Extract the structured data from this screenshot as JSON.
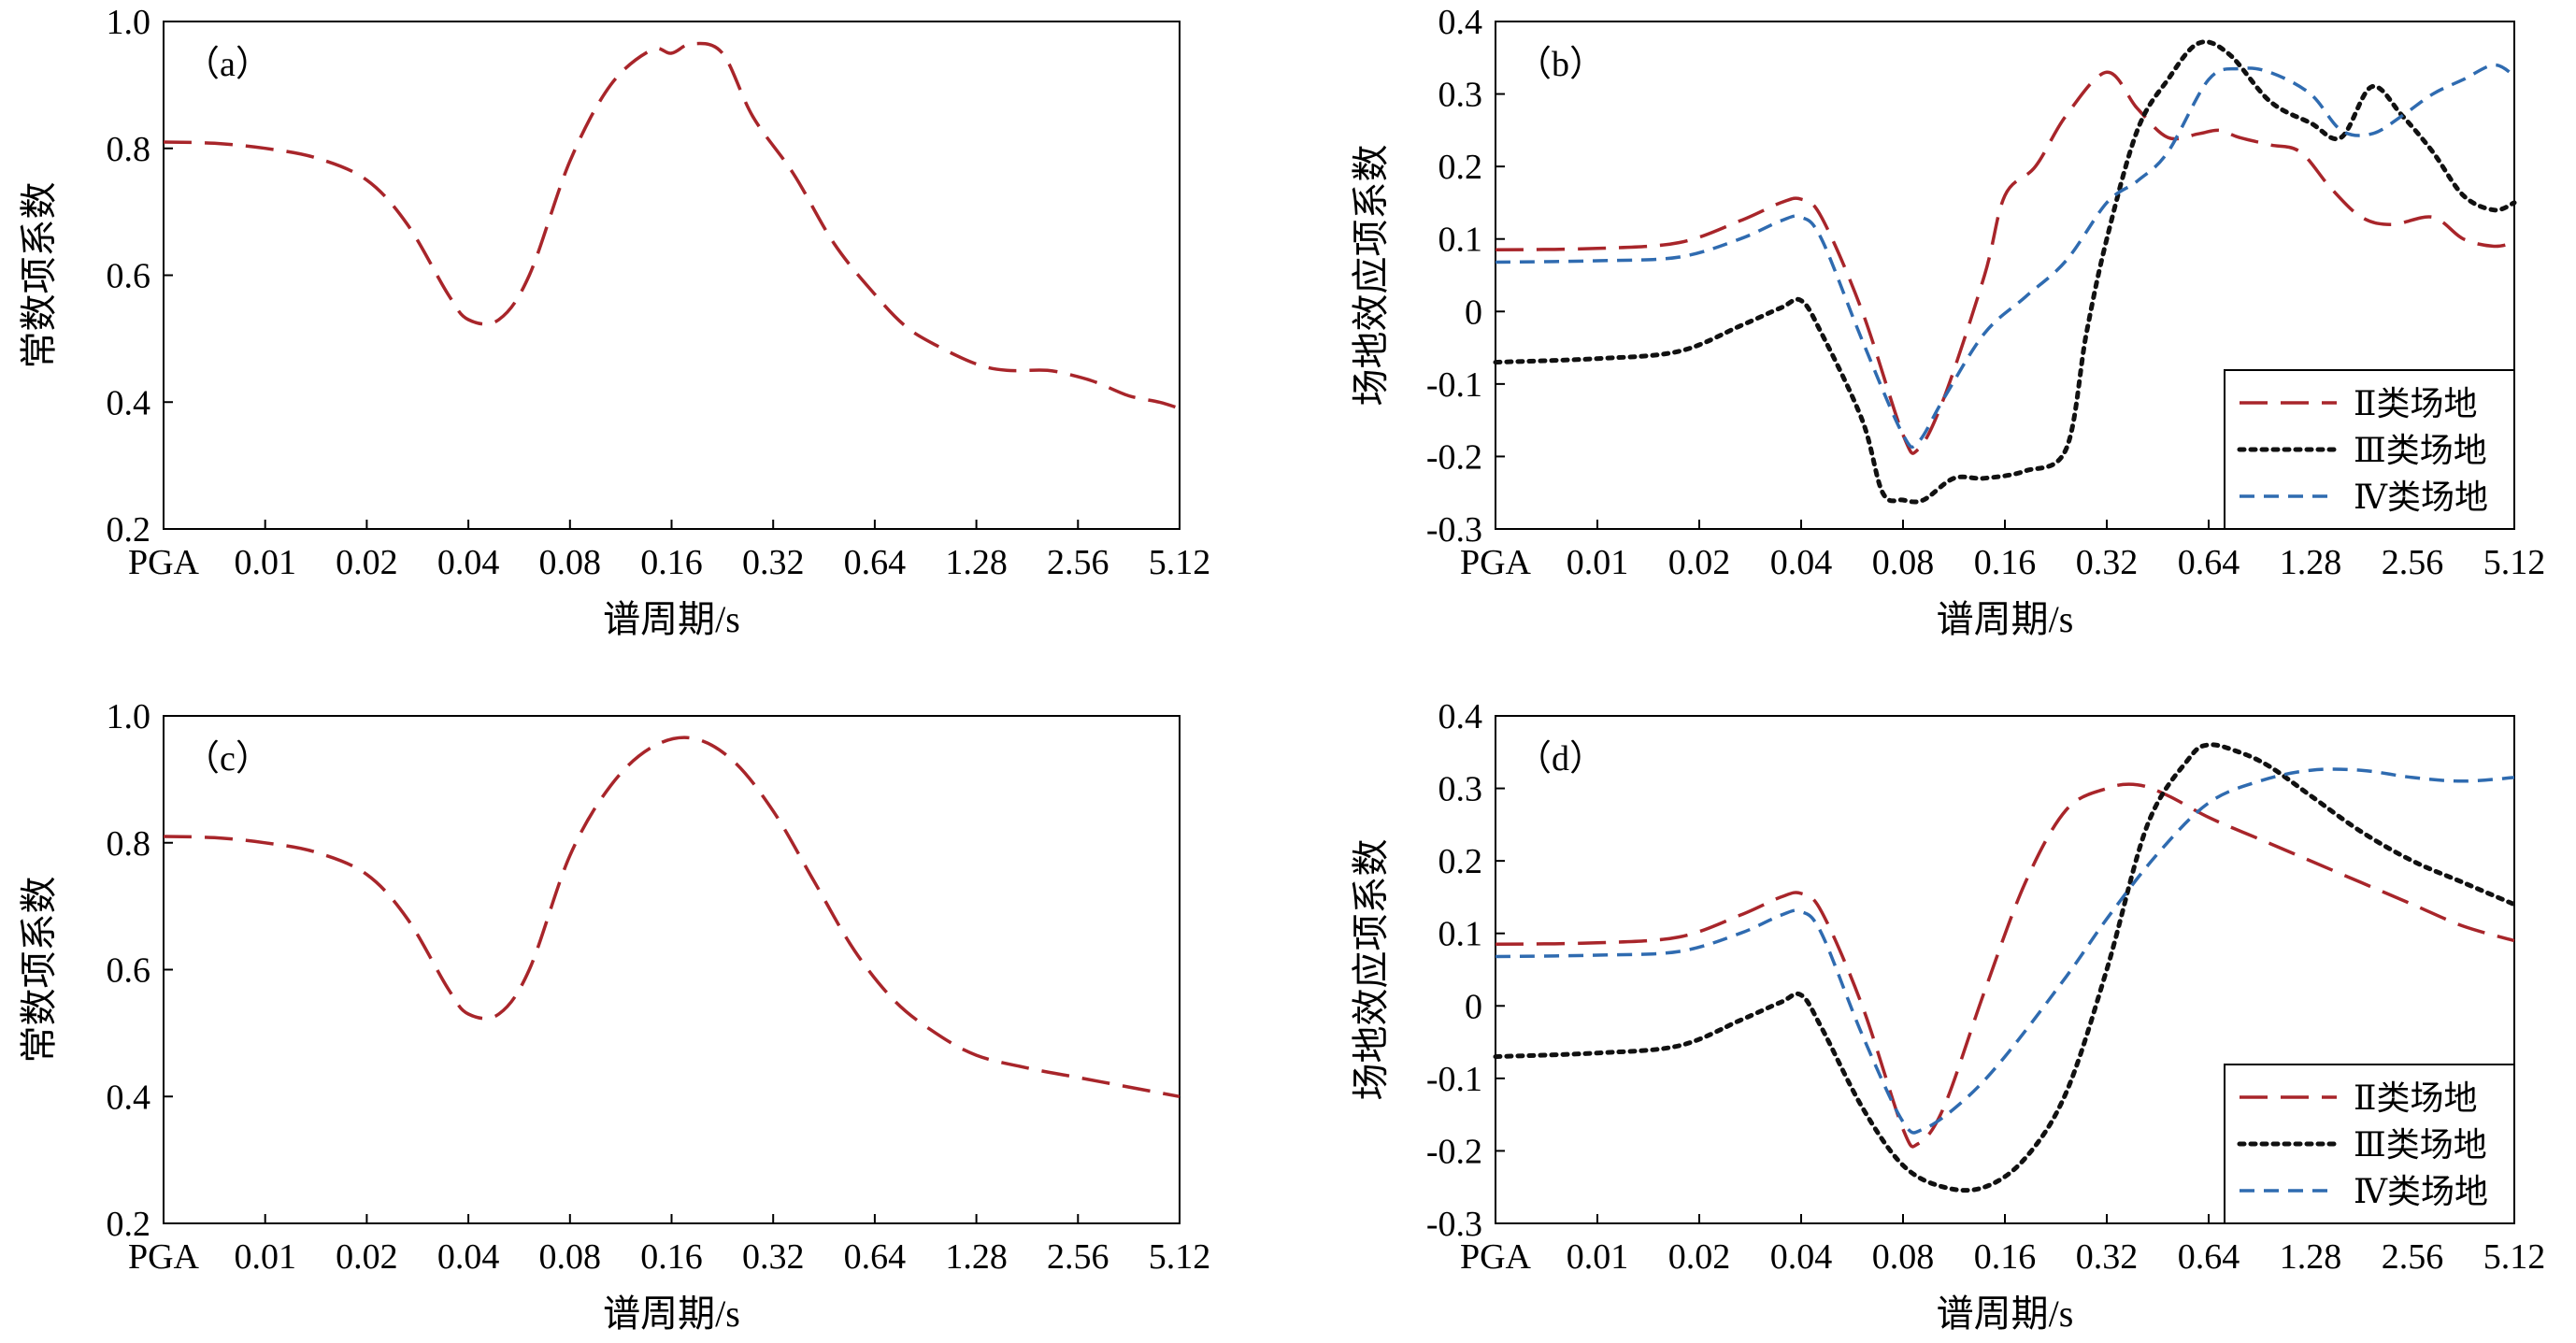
{
  "x_ticks": [
    "PGA",
    "0.01",
    "0.02",
    "0.04",
    "0.08",
    "0.16",
    "0.32",
    "0.64",
    "1.28",
    "2.56",
    "5.12"
  ],
  "legend": [
    {
      "label": "Ⅱ类场地",
      "color": "#a8252a",
      "dash": "long-dash"
    },
    {
      "label": "Ⅲ类场地",
      "color": "#111111",
      "dash": "dotted"
    },
    {
      "label": "Ⅳ类场地",
      "color": "#2f6bb0",
      "dash": "short-dash"
    }
  ],
  "chart_data": [
    {
      "type": "line",
      "tag": "（a）",
      "xlabel": "谱周期/s",
      "ylabel": "常数项系数",
      "ylim": [
        0.2,
        1.0
      ],
      "yticks": [
        "0.2",
        "0.4",
        "0.6",
        "0.8",
        "1.0"
      ],
      "xlim": [
        0,
        10
      ],
      "series": [
        {
          "color": "#a8252a",
          "dash": "long-dash",
          "x": [
            0,
            0.5,
            1,
            1.5,
            2,
            2.4,
            2.8,
            3.0,
            3.3,
            3.6,
            4.0,
            4.4,
            4.8,
            5.0,
            5.2,
            5.5,
            5.8,
            6.2,
            6.6,
            7.0,
            7.3,
            7.6,
            8.0,
            8.3,
            8.7,
            9.0,
            9.2,
            9.5,
            9.8,
            10
          ],
          "y": [
            0.81,
            0.808,
            0.8,
            0.785,
            0.75,
            0.68,
            0.57,
            0.53,
            0.53,
            0.6,
            0.78,
            0.9,
            0.955,
            0.95,
            0.965,
            0.95,
            0.85,
            0.76,
            0.65,
            0.57,
            0.52,
            0.49,
            0.46,
            0.45,
            0.45,
            0.44,
            0.43,
            0.41,
            0.4,
            0.39
          ]
        }
      ]
    },
    {
      "type": "line",
      "tag": "（b）",
      "xlabel": "谱周期/s",
      "ylabel": "场地效应项系数",
      "ylim": [
        -0.3,
        0.4
      ],
      "yticks": [
        "-0.3",
        "-0.2",
        "-0.1",
        "0",
        "0.1",
        "0.2",
        "0.3",
        "0.4"
      ],
      "xlim": [
        0,
        10
      ],
      "series": [
        {
          "name": "Ⅱ类场地",
          "color": "#a8252a",
          "dash": "long-dash",
          "x": [
            0,
            1,
            1.8,
            2.4,
            2.8,
            3.0,
            3.2,
            3.6,
            4.0,
            4.15,
            4.4,
            4.8,
            5.0,
            5.3,
            5.6,
            6.0,
            6.3,
            6.6,
            6.9,
            7.1,
            7.3,
            7.6,
            7.9,
            8.2,
            8.5,
            8.8,
            9.2,
            9.5,
            9.8,
            10
          ],
          "y": [
            0.085,
            0.087,
            0.095,
            0.125,
            0.15,
            0.155,
            0.13,
            0.0,
            -0.17,
            -0.19,
            -0.12,
            0.05,
            0.16,
            0.2,
            0.27,
            0.33,
            0.28,
            0.24,
            0.245,
            0.25,
            0.24,
            0.23,
            0.22,
            0.17,
            0.13,
            0.12,
            0.13,
            0.1,
            0.09,
            0.095
          ]
        },
        {
          "name": "Ⅲ类场地",
          "color": "#111111",
          "dash": "dotted",
          "x": [
            0,
            1,
            1.8,
            2.4,
            2.8,
            3.0,
            3.2,
            3.6,
            3.8,
            4.0,
            4.2,
            4.5,
            4.8,
            5.2,
            5.6,
            5.8,
            6.0,
            6.3,
            6.6,
            6.9,
            7.2,
            7.6,
            8.0,
            8.3,
            8.6,
            8.9,
            9.2,
            9.5,
            9.8,
            10
          ],
          "y": [
            -0.07,
            -0.065,
            -0.055,
            -0.02,
            0.005,
            0.015,
            -0.03,
            -0.15,
            -0.25,
            -0.26,
            -0.26,
            -0.23,
            -0.23,
            -0.22,
            -0.19,
            -0.03,
            0.1,
            0.25,
            0.32,
            0.37,
            0.355,
            0.29,
            0.26,
            0.24,
            0.31,
            0.27,
            0.22,
            0.16,
            0.14,
            0.15
          ]
        },
        {
          "name": "Ⅳ类场地",
          "color": "#2f6bb0",
          "dash": "short-dash",
          "x": [
            0,
            1,
            1.8,
            2.4,
            2.8,
            3.0,
            3.2,
            3.6,
            4.0,
            4.15,
            4.4,
            4.8,
            5.2,
            5.6,
            6.0,
            6.3,
            6.6,
            7.0,
            7.3,
            7.6,
            8.0,
            8.3,
            8.6,
            8.9,
            9.2,
            9.5,
            9.8,
            10
          ],
          "y": [
            0.068,
            0.07,
            0.075,
            0.1,
            0.125,
            0.13,
            0.1,
            -0.04,
            -0.17,
            -0.18,
            -0.12,
            -0.03,
            0.02,
            0.07,
            0.15,
            0.18,
            0.22,
            0.32,
            0.335,
            0.33,
            0.3,
            0.25,
            0.245,
            0.27,
            0.3,
            0.32,
            0.34,
            0.325
          ]
        }
      ]
    },
    {
      "type": "line",
      "tag": "（c）",
      "xlabel": "谱周期/s",
      "ylabel": "常数项系数",
      "ylim": [
        0.2,
        1.0
      ],
      "yticks": [
        "0.2",
        "0.4",
        "0.6",
        "0.8",
        "1.0"
      ],
      "xlim": [
        0,
        10
      ],
      "series": [
        {
          "color": "#a8252a",
          "dash": "long-dash",
          "x": [
            0,
            0.5,
            1,
            1.5,
            2,
            2.4,
            2.8,
            3.0,
            3.3,
            3.6,
            4.0,
            4.4,
            4.8,
            5.2,
            5.6,
            6.0,
            6.4,
            6.8,
            7.2,
            7.6,
            8.0,
            8.5,
            9.0,
            9.5,
            10
          ],
          "y": [
            0.81,
            0.808,
            0.8,
            0.785,
            0.75,
            0.68,
            0.57,
            0.53,
            0.53,
            0.6,
            0.78,
            0.89,
            0.95,
            0.965,
            0.93,
            0.85,
            0.74,
            0.63,
            0.55,
            0.5,
            0.465,
            0.445,
            0.43,
            0.415,
            0.4
          ]
        }
      ]
    },
    {
      "type": "line",
      "tag": "（d）",
      "xlabel": "谱周期/s",
      "ylabel": "场地效应项系数",
      "ylim": [
        -0.3,
        0.4
      ],
      "yticks": [
        "-0.3",
        "-0.2",
        "-0.1",
        "0",
        "0.1",
        "0.2",
        "0.3",
        "0.4"
      ],
      "xlim": [
        0,
        10
      ],
      "series": [
        {
          "name": "Ⅱ类场地",
          "color": "#a8252a",
          "dash": "long-dash",
          "x": [
            0,
            1,
            1.8,
            2.4,
            2.8,
            3.0,
            3.2,
            3.6,
            4.0,
            4.15,
            4.4,
            4.8,
            5.2,
            5.6,
            6.0,
            6.3,
            6.6,
            7.0,
            7.5,
            8.0,
            8.5,
            9.0,
            9.5,
            10
          ],
          "y": [
            0.085,
            0.087,
            0.095,
            0.125,
            0.15,
            0.155,
            0.13,
            0.0,
            -0.17,
            -0.19,
            -0.14,
            0.02,
            0.17,
            0.27,
            0.3,
            0.305,
            0.29,
            0.26,
            0.23,
            0.2,
            0.17,
            0.14,
            0.11,
            0.09
          ]
        },
        {
          "name": "Ⅲ类场地",
          "color": "#111111",
          "dash": "dotted",
          "x": [
            0,
            1,
            1.8,
            2.4,
            2.8,
            3.0,
            3.2,
            3.6,
            4.0,
            4.4,
            4.8,
            5.2,
            5.6,
            6.0,
            6.4,
            6.8,
            7.0,
            7.3,
            7.6,
            8.0,
            8.5,
            9.0,
            9.5,
            10
          ],
          "y": [
            -0.07,
            -0.065,
            -0.055,
            -0.02,
            0.005,
            0.015,
            -0.03,
            -0.14,
            -0.22,
            -0.25,
            -0.25,
            -0.21,
            -0.12,
            0.05,
            0.25,
            0.34,
            0.36,
            0.35,
            0.33,
            0.29,
            0.24,
            0.2,
            0.17,
            0.14
          ]
        },
        {
          "name": "Ⅳ类场地",
          "color": "#2f6bb0",
          "dash": "short-dash",
          "x": [
            0,
            1,
            1.8,
            2.4,
            2.8,
            3.0,
            3.2,
            3.6,
            4.0,
            4.2,
            4.6,
            5.0,
            5.6,
            6.0,
            6.5,
            7.0,
            7.5,
            8.0,
            8.5,
            9.0,
            9.5,
            10
          ],
          "y": [
            0.068,
            0.07,
            0.075,
            0.1,
            0.125,
            0.13,
            0.1,
            -0.04,
            -0.16,
            -0.17,
            -0.13,
            -0.07,
            0.04,
            0.12,
            0.21,
            0.28,
            0.31,
            0.325,
            0.325,
            0.315,
            0.31,
            0.315
          ]
        }
      ]
    }
  ]
}
